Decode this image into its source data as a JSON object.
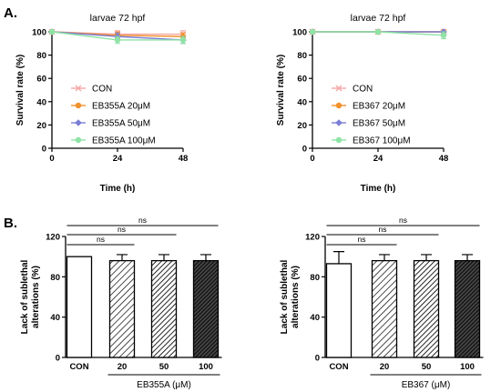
{
  "panel_labels": [
    "A.",
    "B."
  ],
  "chart_data": [
    {
      "type": "line",
      "title": "larvae 72 hpf",
      "xlabel": "Time (h)",
      "ylabel": "Survival rate (%)",
      "xlim": [
        0,
        48
      ],
      "ylim": [
        0,
        100
      ],
      "xticks": [
        "0",
        "24",
        "48"
      ],
      "yticks": [
        "0",
        "20",
        "40",
        "60",
        "80",
        "100"
      ],
      "x": [
        0,
        24,
        48
      ],
      "legend_position": "left",
      "series": [
        {
          "name": "CON",
          "values": [
            100,
            98,
            98
          ],
          "errors": [
            0,
            3,
            3
          ],
          "color": "#f4a6a6",
          "marker": "cross"
        },
        {
          "name": "EB355A 20μM",
          "values": [
            100,
            97,
            96
          ],
          "errors": [
            0,
            3,
            3
          ],
          "color": "#f0912c",
          "marker": "circle"
        },
        {
          "name": "EB355A 50μM",
          "values": [
            100,
            96,
            93
          ],
          "errors": [
            0,
            3,
            3
          ],
          "color": "#7b7ed6",
          "marker": "diamond"
        },
        {
          "name": "EB355A 100μM",
          "values": [
            100,
            93,
            93
          ],
          "errors": [
            0,
            3,
            3
          ],
          "color": "#8ee3a5",
          "marker": "circle"
        }
      ]
    },
    {
      "type": "line",
      "title": "larvae 72 hpf",
      "xlabel": "Time (h)",
      "ylabel": "Survival rate (%)",
      "xlim": [
        0,
        48
      ],
      "ylim": [
        0,
        100
      ],
      "xticks": [
        "0",
        "24",
        "48"
      ],
      "yticks": [
        "0",
        "20",
        "40",
        "60",
        "80",
        "100"
      ],
      "x": [
        0,
        24,
        48
      ],
      "legend_position": "left",
      "series": [
        {
          "name": "CON",
          "values": [
            100,
            100,
            100
          ],
          "errors": [
            0,
            0,
            0
          ],
          "color": "#f4a6a6",
          "marker": "cross"
        },
        {
          "name": "EB367 20μM",
          "values": [
            100,
            100,
            100
          ],
          "errors": [
            0,
            0,
            0
          ],
          "color": "#f0912c",
          "marker": "circle"
        },
        {
          "name": "EB367 50μM",
          "values": [
            100,
            100,
            100
          ],
          "errors": [
            0,
            0,
            0
          ],
          "color": "#7b7ed6",
          "marker": "diamond"
        },
        {
          "name": "EB367 100μM",
          "values": [
            100,
            100,
            97
          ],
          "errors": [
            0,
            0,
            3
          ],
          "color": "#8ee3a5",
          "marker": "circle"
        }
      ]
    },
    {
      "type": "bar",
      "ylabel": "Lack of sublethal alterations (%)",
      "ylim": [
        0,
        120
      ],
      "yticks": [
        "0",
        "40",
        "80",
        "120"
      ],
      "categories": [
        "CON",
        "20",
        "50",
        "100"
      ],
      "values": [
        100,
        96,
        96,
        96
      ],
      "errors": [
        0,
        6,
        6,
        6
      ],
      "fills": [
        "open",
        "hatch-light",
        "hatch-mid",
        "hatch-dark"
      ],
      "group_label": "EB355A (μM)",
      "significance": [
        "ns",
        "ns",
        "ns"
      ]
    },
    {
      "type": "bar",
      "ylabel": "Lack of sublethal alterations (%)",
      "ylim": [
        0,
        120
      ],
      "yticks": [
        "0",
        "40",
        "80",
        "120"
      ],
      "categories": [
        "CON",
        "20",
        "50",
        "100"
      ],
      "values": [
        93,
        96,
        96,
        96
      ],
      "errors": [
        12,
        6,
        6,
        6
      ],
      "fills": [
        "open",
        "hatch-light",
        "hatch-mid",
        "hatch-dark"
      ],
      "group_label": "EB367 (μM)",
      "significance": [
        "ns",
        "ns",
        "ns"
      ]
    }
  ]
}
